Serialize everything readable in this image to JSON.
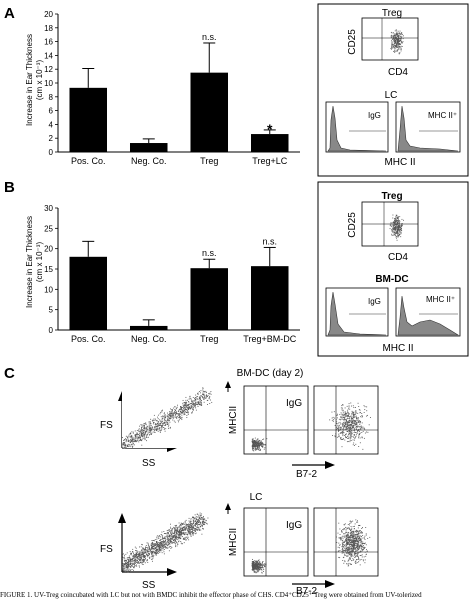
{
  "panels": {
    "A": "A",
    "B": "B",
    "C": "C"
  },
  "chart_data": [
    {
      "type": "bar",
      "panel": "A",
      "categories": [
        "Pos. Co.",
        "Neg. Co.",
        "Treg",
        "Treg+LC"
      ],
      "values": [
        9.3,
        1.3,
        11.5,
        2.6
      ],
      "errors": [
        2.8,
        0.6,
        4.3,
        0.6
      ],
      "significance": [
        "",
        "",
        "n.s.",
        "*"
      ],
      "ylabel": "Increase in Ear Thickness",
      "yunit": "(cm x 10⁻³)",
      "ylim": [
        0,
        20
      ],
      "yticks": [
        0,
        2,
        4,
        6,
        8,
        10,
        12,
        14,
        16,
        18,
        20
      ],
      "color": "#000000"
    },
    {
      "type": "bar",
      "panel": "B",
      "categories": [
        "Pos. Co.",
        "Neg. Co.",
        "Treg",
        "Treg+BM-DC"
      ],
      "values": [
        18.0,
        1.0,
        15.2,
        15.7
      ],
      "errors": [
        3.8,
        1.5,
        2.2,
        4.6
      ],
      "significance": [
        "",
        "",
        "n.s.",
        "n.s."
      ],
      "ylabel": "Increase in Ear Thickness",
      "yunit": "(cm x 10⁻³)",
      "ylim": [
        0,
        30
      ],
      "yticks": [
        0,
        5,
        10,
        15,
        20,
        25,
        30
      ],
      "color": "#000000"
    }
  ],
  "flow_A": {
    "treg_title": "Treg",
    "treg_y": "CD25",
    "treg_x": "CD4",
    "lc_title": "LC",
    "hist_left": "IgG",
    "hist_right": "MHC II⁺",
    "hist_x": "MHC II"
  },
  "flow_B": {
    "treg_title": "Treg",
    "treg_y": "CD25",
    "treg_x": "CD4",
    "dc_title": "BM-DC",
    "hist_left": "IgG",
    "hist_right": "MHC II⁺",
    "hist_x": "MHC II"
  },
  "flow_C": {
    "row1_title": "BM-DC (day 2)",
    "row2_title": "LC",
    "fs": "FS",
    "ss": "SS",
    "mhc": "MHCII",
    "igg": "IgG",
    "b72": "B7-2"
  },
  "caption": "FIGURE 1.   UV-Treg coincubated with LC but not with BMDC inhibit the effector phase of CHS. CD4⁺CD25⁺ Treg were obtained from UV-tolerized"
}
